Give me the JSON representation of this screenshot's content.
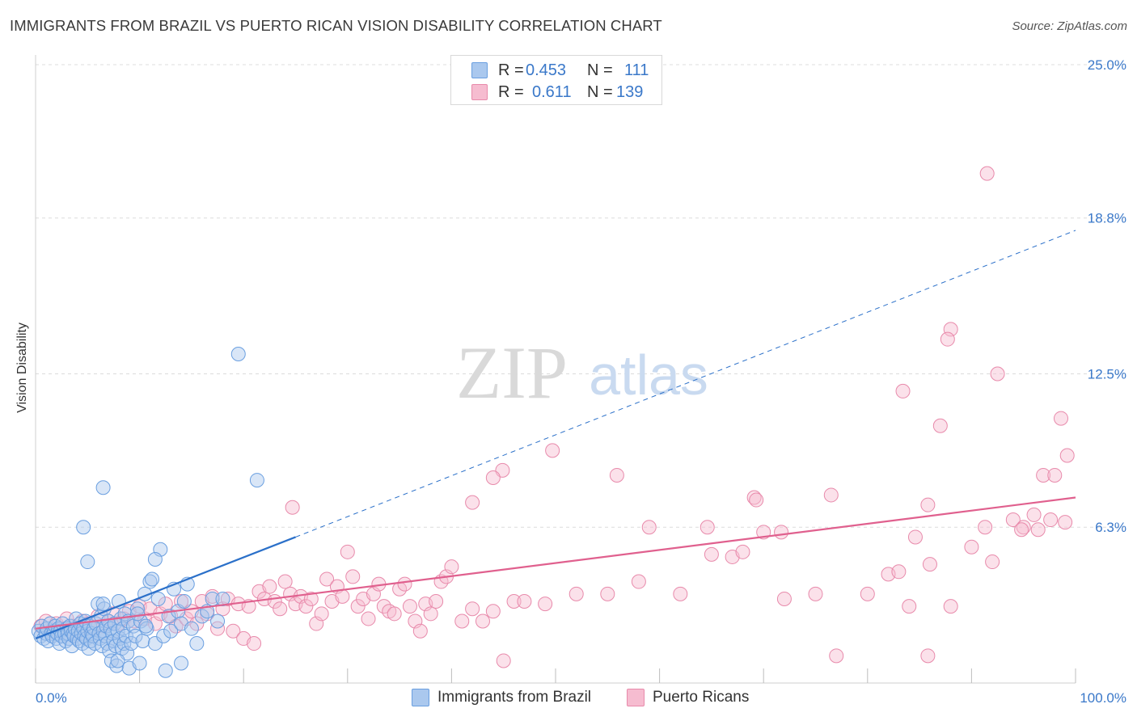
{
  "title": "IMMIGRANTS FROM BRAZIL VS PUERTO RICAN VISION DISABILITY CORRELATION CHART",
  "source": "Source: ZipAtlas.com",
  "watermark": {
    "zip": "ZIP",
    "atlas": "atlas"
  },
  "legend_top": {
    "rows": [
      {
        "r_label": "R =",
        "r_value": "0.453",
        "n_label": "N =",
        "n_value": "111"
      },
      {
        "r_label": "R =",
        "r_value": "0.611",
        "n_label": "N =",
        "n_value": "139"
      }
    ]
  },
  "legend_bottom": [
    "Immigrants from Brazil",
    "Puerto Ricans"
  ],
  "colors": {
    "blue_fill": "#aac8ee",
    "blue_stroke": "#6a9fe0",
    "blue_line": "#2b70c9",
    "pink_fill": "#f6bcd0",
    "pink_stroke": "#e88aab",
    "pink_line": "#e0608e",
    "tick_label": "#3a78c9",
    "grid": "#dcdcdc"
  },
  "chart_data": {
    "type": "scatter",
    "title": "IMMIGRANTS FROM BRAZIL VS PUERTO RICAN VISION DISABILITY CORRELATION CHART",
    "xlabel": "",
    "ylabel": "Vision Disability",
    "xlim": [
      0,
      100
    ],
    "ylim": [
      0,
      25.0
    ],
    "x_tick_labels": [
      "0.0%",
      "100.0%"
    ],
    "y_ticks": [
      6.3,
      12.5,
      18.8,
      25.0
    ],
    "y_tick_labels": [
      "6.3%",
      "12.5%",
      "18.8%",
      "25.0%"
    ],
    "grid": "horizontal dashed",
    "legend": "top-center",
    "series": [
      {
        "name": "Immigrants from Brazil",
        "R": 0.453,
        "N": 111,
        "trend": {
          "x": [
            0,
            25
          ],
          "y": [
            1.8,
            5.9
          ],
          "dashed_extension_to": [
            100,
            18.3
          ]
        },
        "points": [
          [
            0.3,
            2.1
          ],
          [
            0.5,
            1.9
          ],
          [
            0.6,
            2.3
          ],
          [
            0.8,
            1.8
          ],
          [
            1.0,
            2.0
          ],
          [
            1.1,
            2.2
          ],
          [
            1.2,
            1.7
          ],
          [
            1.4,
            2.4
          ],
          [
            1.5,
            2.0
          ],
          [
            1.6,
            1.9
          ],
          [
            1.8,
            2.1
          ],
          [
            1.9,
            2.3
          ],
          [
            2.0,
            1.8
          ],
          [
            2.1,
            2.0
          ],
          [
            2.2,
            2.2
          ],
          [
            2.3,
            1.6
          ],
          [
            2.4,
            2.1
          ],
          [
            2.5,
            1.9
          ],
          [
            2.6,
            2.4
          ],
          [
            2.8,
            2.0
          ],
          [
            2.9,
            1.7
          ],
          [
            3.0,
            2.2
          ],
          [
            3.1,
            2.0
          ],
          [
            3.2,
            1.8
          ],
          [
            3.3,
            2.3
          ],
          [
            3.4,
            2.1
          ],
          [
            3.5,
            1.5
          ],
          [
            3.6,
            2.0
          ],
          [
            3.7,
            1.9
          ],
          [
            3.8,
            2.2
          ],
          [
            3.9,
            2.6
          ],
          [
            4.0,
            1.8
          ],
          [
            4.1,
            2.1
          ],
          [
            4.2,
            1.7
          ],
          [
            4.3,
            2.4
          ],
          [
            4.4,
            2.0
          ],
          [
            4.5,
            1.6
          ],
          [
            4.6,
            2.2
          ],
          [
            4.7,
            1.9
          ],
          [
            4.8,
            2.5
          ],
          [
            4.9,
            1.8
          ],
          [
            5.0,
            2.1
          ],
          [
            5.1,
            1.4
          ],
          [
            5.2,
            2.3
          ],
          [
            5.3,
            1.7
          ],
          [
            5.4,
            2.0
          ],
          [
            5.5,
            1.9
          ],
          [
            5.6,
            2.2
          ],
          [
            5.7,
            1.6
          ],
          [
            5.8,
            2.4
          ],
          [
            6.0,
            3.2
          ],
          [
            6.1,
            2.0
          ],
          [
            6.2,
            1.8
          ],
          [
            6.3,
            2.7
          ],
          [
            6.4,
            1.5
          ],
          [
            6.5,
            2.1
          ],
          [
            6.6,
            3.0
          ],
          [
            6.7,
            1.9
          ],
          [
            6.8,
            2.3
          ],
          [
            6.9,
            1.6
          ],
          [
            7.0,
            2.5
          ],
          [
            7.1,
            1.3
          ],
          [
            7.2,
            2.2
          ],
          [
            7.3,
            0.9
          ],
          [
            7.4,
            2.0
          ],
          [
            7.5,
            1.7
          ],
          [
            7.6,
            2.4
          ],
          [
            7.7,
            1.5
          ],
          [
            7.8,
            0.7
          ],
          [
            7.9,
            2.1
          ],
          [
            8.0,
            3.3
          ],
          [
            8.1,
            1.8
          ],
          [
            8.2,
            2.6
          ],
          [
            8.3,
            1.4
          ],
          [
            8.4,
            2.2
          ],
          [
            8.5,
            1.6
          ],
          [
            8.6,
            2.8
          ],
          [
            8.7,
            1.9
          ],
          [
            8.8,
            1.2
          ],
          [
            8.9,
            2.5
          ],
          [
            9.0,
            0.6
          ],
          [
            9.2,
            1.6
          ],
          [
            9.4,
            2.3
          ],
          [
            9.6,
            1.9
          ],
          [
            9.8,
            3.0
          ],
          [
            10.0,
            0.8
          ],
          [
            10.1,
            2.5
          ],
          [
            10.3,
            1.7
          ],
          [
            10.5,
            3.6
          ],
          [
            10.7,
            2.2
          ],
          [
            11.0,
            4.1
          ],
          [
            11.2,
            4.2
          ],
          [
            11.5,
            1.6
          ],
          [
            11.8,
            3.4
          ],
          [
            12.0,
            5.4
          ],
          [
            12.3,
            1.9
          ],
          [
            12.5,
            0.5
          ],
          [
            12.8,
            2.7
          ],
          [
            13.0,
            2.1
          ],
          [
            13.3,
            3.8
          ],
          [
            13.7,
            2.9
          ],
          [
            14.0,
            2.4
          ],
          [
            14.3,
            3.3
          ],
          [
            14.6,
            4.0
          ],
          [
            15.0,
            2.2
          ],
          [
            15.5,
            1.6
          ],
          [
            16.0,
            2.7
          ],
          [
            16.5,
            2.9
          ],
          [
            17.0,
            3.4
          ],
          [
            17.5,
            2.5
          ],
          [
            18.0,
            3.4
          ]
        ],
        "outliers": [
          [
            19.5,
            13.3
          ],
          [
            21.3,
            8.2
          ],
          [
            6.5,
            7.9
          ],
          [
            4.6,
            6.3
          ],
          [
            5.0,
            4.9
          ],
          [
            7.9,
            0.9
          ],
          [
            11.5,
            5.0
          ],
          [
            14.0,
            0.8
          ],
          [
            6.5,
            3.2
          ],
          [
            9.8,
            2.8
          ],
          [
            10.6,
            2.3
          ]
        ]
      },
      {
        "name": "Puerto Ricans",
        "R": 0.611,
        "N": 139,
        "trend": {
          "x": [
            0,
            100
          ],
          "y": [
            2.2,
            7.5
          ]
        },
        "points": [
          [
            0.5,
            2.3
          ],
          [
            1.0,
            2.5
          ],
          [
            1.5,
            2.1
          ],
          [
            2.0,
            2.4
          ],
          [
            2.5,
            2.2
          ],
          [
            3.0,
            2.6
          ],
          [
            3.5,
            2.3
          ],
          [
            4.0,
            2.1
          ],
          [
            4.5,
            2.5
          ],
          [
            5.0,
            2.4
          ],
          [
            5.5,
            2.2
          ],
          [
            6.0,
            2.7
          ],
          [
            6.5,
            2.3
          ],
          [
            7.0,
            2.5
          ],
          [
            7.5,
            2.8
          ],
          [
            8.0,
            2.4
          ],
          [
            8.5,
            2.6
          ],
          [
            9.0,
            2.9
          ],
          [
            9.5,
            2.5
          ],
          [
            10.0,
            3.1
          ],
          [
            10.5,
            2.6
          ],
          [
            11.0,
            3.0
          ],
          [
            11.5,
            2.4
          ],
          [
            12.0,
            2.8
          ],
          [
            12.5,
            3.2
          ],
          [
            13.0,
            2.7
          ],
          [
            13.5,
            2.3
          ],
          [
            14.0,
            3.3
          ],
          [
            14.5,
            2.6
          ],
          [
            15.0,
            2.9
          ],
          [
            15.5,
            2.4
          ],
          [
            16.0,
            3.3
          ],
          [
            16.5,
            2.8
          ],
          [
            17.0,
            3.5
          ],
          [
            17.5,
            2.2
          ],
          [
            18.0,
            3.0
          ],
          [
            18.5,
            3.4
          ],
          [
            19.0,
            2.1
          ],
          [
            19.5,
            3.2
          ],
          [
            20.0,
            1.8
          ],
          [
            20.5,
            3.1
          ],
          [
            21.0,
            1.6
          ],
          [
            21.5,
            3.7
          ],
          [
            22.0,
            3.4
          ],
          [
            22.5,
            3.9
          ],
          [
            23.0,
            3.3
          ],
          [
            23.5,
            3.0
          ],
          [
            24.0,
            4.1
          ],
          [
            24.5,
            3.6
          ],
          [
            25.0,
            3.2
          ],
          [
            25.5,
            3.5
          ],
          [
            26.0,
            3.1
          ],
          [
            26.5,
            3.4
          ],
          [
            27.0,
            2.4
          ],
          [
            27.5,
            2.8
          ],
          [
            28.0,
            4.2
          ],
          [
            28.5,
            3.3
          ],
          [
            29.0,
            3.9
          ],
          [
            29.5,
            3.5
          ],
          [
            30.0,
            5.3
          ],
          [
            30.5,
            4.3
          ],
          [
            31.0,
            3.1
          ],
          [
            31.5,
            3.4
          ],
          [
            32.0,
            2.6
          ],
          [
            32.5,
            3.6
          ],
          [
            33.0,
            4.0
          ],
          [
            33.5,
            3.1
          ],
          [
            34.0,
            2.9
          ],
          [
            34.5,
            2.8
          ],
          [
            35.0,
            3.8
          ],
          [
            35.5,
            4.0
          ],
          [
            36.0,
            3.1
          ],
          [
            36.5,
            2.5
          ],
          [
            37.0,
            2.1
          ],
          [
            37.5,
            3.2
          ],
          [
            38.0,
            2.8
          ],
          [
            38.5,
            3.3
          ],
          [
            39.0,
            4.1
          ],
          [
            39.5,
            4.3
          ],
          [
            40.0,
            4.7
          ],
          [
            41.0,
            2.5
          ],
          [
            42.0,
            3.0
          ],
          [
            43.0,
            2.5
          ],
          [
            44.0,
            2.9
          ],
          [
            45.0,
            0.9
          ],
          [
            46.0,
            3.3
          ],
          [
            47.0,
            3.3
          ],
          [
            49.0,
            3.2
          ],
          [
            52.0,
            3.6
          ],
          [
            55.0,
            3.6
          ],
          [
            58.0,
            4.1
          ],
          [
            59.0,
            6.3
          ],
          [
            62.0,
            3.6
          ],
          [
            65.0,
            5.2
          ],
          [
            67.0,
            5.1
          ],
          [
            68.0,
            5.3
          ],
          [
            70.0,
            6.1
          ],
          [
            72.0,
            3.4
          ],
          [
            75.0,
            3.6
          ],
          [
            77.0,
            1.1
          ],
          [
            80.0,
            3.6
          ],
          [
            82.0,
            4.4
          ],
          [
            83.0,
            4.5
          ],
          [
            84.0,
            3.1
          ],
          [
            86.0,
            4.8
          ],
          [
            88.0,
            3.1
          ],
          [
            90.0,
            5.5
          ],
          [
            92.0,
            4.9
          ],
          [
            94.0,
            6.6
          ],
          [
            95.0,
            6.3
          ]
        ],
        "outliers": [
          [
            91.5,
            20.6
          ],
          [
            88.0,
            14.3
          ],
          [
            87.7,
            13.9
          ],
          [
            92.5,
            12.5
          ],
          [
            83.4,
            11.8
          ],
          [
            87.0,
            10.4
          ],
          [
            98.6,
            10.7
          ],
          [
            99.2,
            9.2
          ],
          [
            49.7,
            9.4
          ],
          [
            44.9,
            8.6
          ],
          [
            44.0,
            8.3
          ],
          [
            42.0,
            7.3
          ],
          [
            55.9,
            8.4
          ],
          [
            69.1,
            7.5
          ],
          [
            69.3,
            7.4
          ],
          [
            76.5,
            7.6
          ],
          [
            85.8,
            7.2
          ],
          [
            96.9,
            8.4
          ],
          [
            98.0,
            8.4
          ],
          [
            96.0,
            6.8
          ],
          [
            97.6,
            6.6
          ],
          [
            99.0,
            6.5
          ],
          [
            96.4,
            6.2
          ],
          [
            94.8,
            6.2
          ],
          [
            91.3,
            6.3
          ],
          [
            84.6,
            5.9
          ],
          [
            71.7,
            6.1
          ],
          [
            64.6,
            6.3
          ],
          [
            24.7,
            7.1
          ],
          [
            85.8,
            1.1
          ]
        ]
      }
    ]
  }
}
